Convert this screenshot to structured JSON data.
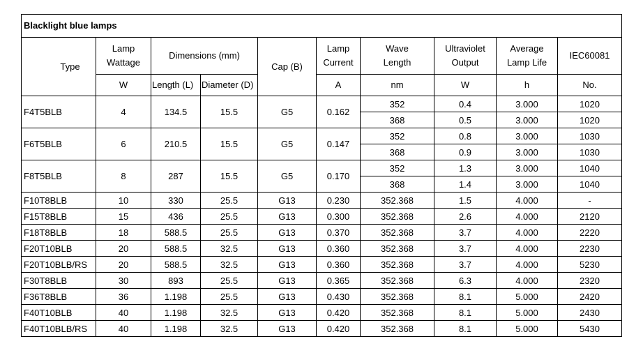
{
  "title": "Blacklight blue lamps",
  "header": {
    "top": [
      [
        "Type"
      ],
      [
        "Lamp",
        "Wattage"
      ],
      [
        "Dimensions (mm)"
      ],
      [
        "Cap (B)"
      ],
      [
        "Lamp",
        "Current"
      ],
      [
        "Wave",
        "Length"
      ],
      [
        "Ultraviolet",
        "Output"
      ],
      [
        "Average",
        "Lamp Life"
      ],
      [
        "IEC60081"
      ]
    ],
    "units": [
      "W",
      "Length (L)",
      "Diameter (D)",
      "A",
      "nm",
      "W",
      "h",
      "No."
    ]
  },
  "rows": [
    {
      "main": [
        "F4T5BLB",
        "4",
        "134.5",
        "15.5",
        "G5",
        "0.162"
      ],
      "sub": [
        [
          "352",
          "0.4",
          "3.000",
          "1020"
        ],
        [
          "368",
          "0.5",
          "3.000",
          "1020"
        ]
      ]
    },
    {
      "main": [
        "F6T5BLB",
        "6",
        "210.5",
        "15.5",
        "G5",
        "0.147"
      ],
      "sub": [
        [
          "352",
          "0.8",
          "3.000",
          "1030"
        ],
        [
          "368",
          "0.9",
          "3.000",
          "1030"
        ]
      ]
    },
    {
      "main": [
        "F8T5BLB",
        "8",
        "287",
        "15.5",
        "G5",
        "0.170"
      ],
      "sub": [
        [
          "352",
          "1.3",
          "3.000",
          "1040"
        ],
        [
          "368",
          "1.4",
          "3.000",
          "1040"
        ]
      ]
    },
    {
      "main": [
        "F10T8BLB",
        "10",
        "330",
        "25.5",
        "G13",
        "0.230"
      ],
      "sub": [
        [
          "352.368",
          "1.5",
          "4.000",
          "-"
        ]
      ]
    },
    {
      "main": [
        "F15T8BLB",
        "15",
        "436",
        "25.5",
        "G13",
        "0.300"
      ],
      "sub": [
        [
          "352.368",
          "2.6",
          "4.000",
          "2120"
        ]
      ]
    },
    {
      "main": [
        "F18T8BLB",
        "18",
        "588.5",
        "25.5",
        "G13",
        "0.370"
      ],
      "sub": [
        [
          "352.368",
          "3.7",
          "4.000",
          "2220"
        ]
      ]
    },
    {
      "main": [
        "F20T10BLB",
        "20",
        "588.5",
        "32.5",
        "G13",
        "0.360"
      ],
      "sub": [
        [
          "352.368",
          "3.7",
          "4.000",
          "2230"
        ]
      ]
    },
    {
      "main": [
        "F20T10BLB/RS",
        "20",
        "588.5",
        "32.5",
        "G13",
        "0.360"
      ],
      "sub": [
        [
          "352.368",
          "3.7",
          "4.000",
          "5230"
        ]
      ]
    },
    {
      "main": [
        "F30T8BLB",
        "30",
        "893",
        "25.5",
        "G13",
        "0.365"
      ],
      "sub": [
        [
          "352.368",
          "6.3",
          "4.000",
          "2320"
        ]
      ]
    },
    {
      "main": [
        "F36T8BLB",
        "36",
        "1.198",
        "25.5",
        "G13",
        "0.430"
      ],
      "sub": [
        [
          "352.368",
          "8.1",
          "5.000",
          "2420"
        ]
      ]
    },
    {
      "main": [
        "F40T10BLB",
        "40",
        "1.198",
        "32.5",
        "G13",
        "0.420"
      ],
      "sub": [
        [
          "352.368",
          "8.1",
          "5.000",
          "2430"
        ]
      ]
    },
    {
      "main": [
        "F40T10BLB/RS",
        "40",
        "1.198",
        "32.5",
        "G13",
        "0.420"
      ],
      "sub": [
        [
          "352.368",
          "8.1",
          "5.000",
          "5430"
        ]
      ]
    }
  ]
}
